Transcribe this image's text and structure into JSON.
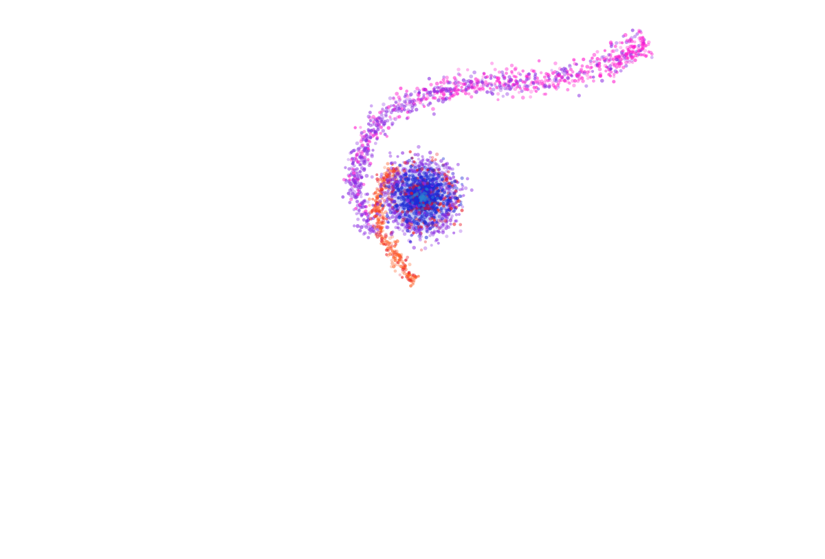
{
  "scene": {
    "background": "#ffffff",
    "palette": {
      "core": "#1d2bd6",
      "core_glow": "#2a7fd0",
      "violet": "#8a2be2",
      "magenta": "#ff1fd0",
      "orange": "#ff5a1f",
      "red": "#e8121e"
    }
  }
}
